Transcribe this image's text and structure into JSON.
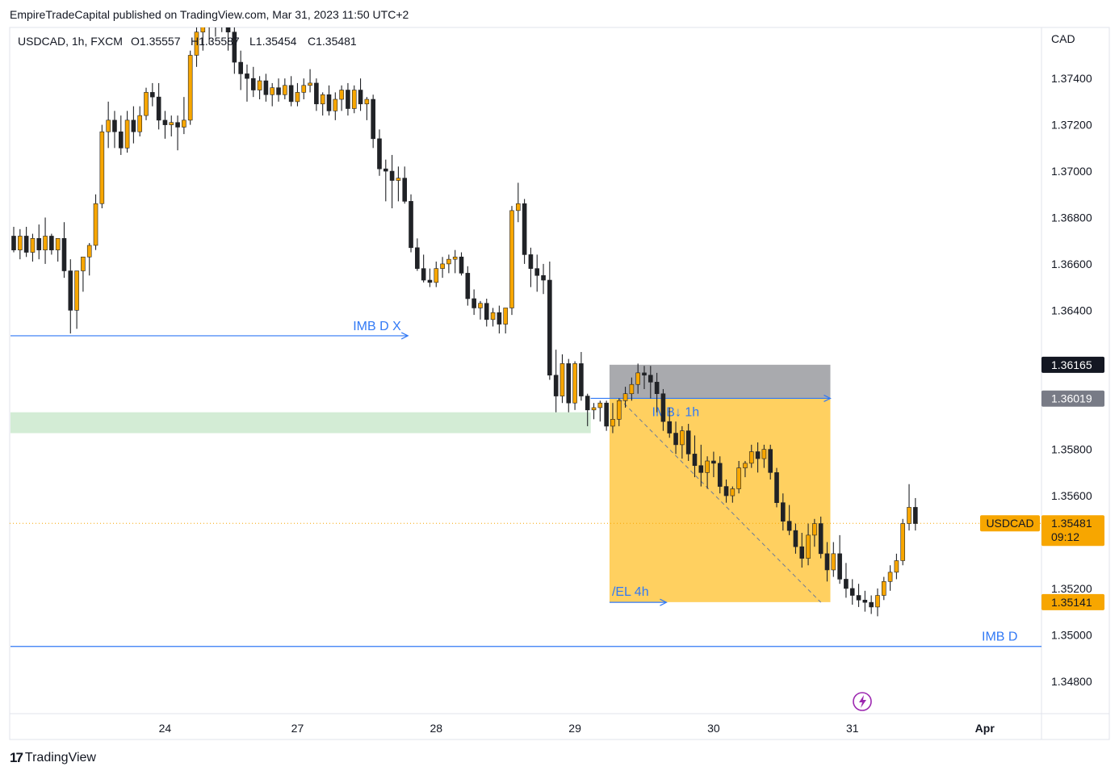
{
  "header": {
    "publisher_line": "EmpireTradeCapital published on TradingView.com, Mar 31, 2023 11:50 UTC+2"
  },
  "legend": {
    "symbol": "USDCAD, 1h, FXCM",
    "open": "O1.35557",
    "high": "H1.35587",
    "low": "L1.35454",
    "close": "C1.35481"
  },
  "footer": {
    "brand": "TradingView"
  },
  "colors": {
    "bull": "#f7a600",
    "bear": "#202226",
    "zone": "#ffd060",
    "zone_top": "#a9aaae",
    "green_zone": "#d3ecd5",
    "line_blue": "#3179f5",
    "price_tag": "#f7a600",
    "dark_tag": "#131722",
    "grey_tag": "#787b86"
  },
  "chart_data": {
    "type": "candlestick",
    "currency_label": "CAD",
    "ylim": [
      1.3466,
      1.3762
    ],
    "y_ticks": [
      "1.37400",
      "1.37200",
      "1.37000",
      "1.36800",
      "1.36600",
      "1.36400",
      "1.35800",
      "1.35600",
      "1.35200",
      "1.35000",
      "1.34800"
    ],
    "y_tick_values": [
      1.374,
      1.372,
      1.37,
      1.368,
      1.366,
      1.364,
      1.358,
      1.356,
      1.352,
      1.35,
      1.348
    ],
    "x_ticks": [
      "24",
      "27",
      "28",
      "29",
      "30",
      "31",
      "Apr"
    ],
    "x_tick_bar_index": [
      24,
      45,
      67,
      89,
      111,
      133,
      154
    ],
    "last_price_label": "USDCAD",
    "last_price": 1.35481,
    "last_price_text": "1.35481",
    "countdown": "09:12",
    "price_tags": [
      {
        "value": 1.36165,
        "text": "1.36165",
        "style": "dark"
      },
      {
        "value": 1.36019,
        "text": "1.36019",
        "style": "grey"
      },
      {
        "value": 1.35141,
        "text": "1.35141",
        "style": "orange"
      }
    ],
    "horizontal_levels": [
      {
        "label": "IMB D X",
        "price": 1.3629,
        "from_bar": 0,
        "to_bar": 62,
        "arrow": true
      },
      {
        "label": "/EL 4h",
        "price": 1.3514,
        "from_bar": 95,
        "to_bar": 103,
        "arrow": true
      },
      {
        "label": "IMB D",
        "price": 1.3495,
        "from_bar": 0,
        "to_bar": 166,
        "arrow": false
      },
      {
        "label": "IMB↓ 1h",
        "price": 1.3602,
        "from_bar": 92,
        "to_bar": 129,
        "arrow": true
      }
    ],
    "zones": [
      {
        "kind": "green",
        "from_bar": 0,
        "to_bar": 91,
        "top": 1.3596,
        "bottom": 1.3587
      },
      {
        "kind": "target",
        "from_bar": 95,
        "to_bar": 129,
        "top": 1.36019,
        "bottom": 1.35141
      },
      {
        "kind": "stop",
        "from_bar": 95,
        "to_bar": 129,
        "top": 1.36165,
        "bottom": 1.36019
      }
    ],
    "diagonal": {
      "from_bar": 96,
      "from_price": 1.3602,
      "to_bar": 128,
      "to_price": 1.3514
    },
    "candles": [
      [
        1.3672,
        1.3676,
        1.3665,
        1.3666
      ],
      [
        1.3666,
        1.3675,
        1.3662,
        1.3672
      ],
      [
        1.3672,
        1.3676,
        1.3663,
        1.3665
      ],
      [
        1.3665,
        1.3673,
        1.3661,
        1.3671
      ],
      [
        1.3671,
        1.3677,
        1.3662,
        1.3666
      ],
      [
        1.3666,
        1.368,
        1.366,
        1.3672
      ],
      [
        1.3672,
        1.3673,
        1.3664,
        1.3666
      ],
      [
        1.3666,
        1.367,
        1.3661,
        1.3671
      ],
      [
        1.3671,
        1.3678,
        1.3654,
        1.3657
      ],
      [
        1.3657,
        1.3662,
        1.363,
        1.364
      ],
      [
        1.364,
        1.3655,
        1.3632,
        1.3657
      ],
      [
        1.3657,
        1.3662,
        1.3648,
        1.3663
      ],
      [
        1.3663,
        1.3669,
        1.3655,
        1.3668
      ],
      [
        1.3668,
        1.369,
        1.3666,
        1.3686
      ],
      [
        1.3686,
        1.372,
        1.3684,
        1.3717
      ],
      [
        1.3717,
        1.373,
        1.371,
        1.3722
      ],
      [
        1.3722,
        1.3726,
        1.371,
        1.3717
      ],
      [
        1.3717,
        1.3724,
        1.3707,
        1.371
      ],
      [
        1.371,
        1.3726,
        1.3708,
        1.3722
      ],
      [
        1.3722,
        1.3728,
        1.3712,
        1.3717
      ],
      [
        1.3717,
        1.3728,
        1.3715,
        1.3724
      ],
      [
        1.3724,
        1.3736,
        1.3722,
        1.3734
      ],
      [
        1.3734,
        1.3738,
        1.3728,
        1.3732
      ],
      [
        1.3732,
        1.3738,
        1.3718,
        1.3722
      ],
      [
        1.3722,
        1.3726,
        1.3714,
        1.372
      ],
      [
        1.372,
        1.3724,
        1.3715,
        1.3721
      ],
      [
        1.3721,
        1.3724,
        1.3709,
        1.3719
      ],
      [
        1.3719,
        1.3732,
        1.3716,
        1.3722
      ],
      [
        1.3722,
        1.3752,
        1.372,
        1.375
      ],
      [
        1.375,
        1.3762,
        1.3745,
        1.376
      ],
      [
        1.376,
        1.377,
        1.3752,
        1.3765
      ],
      [
        1.3765,
        1.377,
        1.3755,
        1.3768
      ],
      [
        1.3768,
        1.3775,
        1.3758,
        1.377
      ],
      [
        1.377,
        1.3773,
        1.376,
        1.3765
      ],
      [
        1.3765,
        1.377,
        1.3752,
        1.376
      ],
      [
        1.376,
        1.3768,
        1.3742,
        1.3747
      ],
      [
        1.3747,
        1.3752,
        1.3735,
        1.3742
      ],
      [
        1.3742,
        1.3746,
        1.373,
        1.374
      ],
      [
        1.374,
        1.3745,
        1.3732,
        1.3735
      ],
      [
        1.3735,
        1.3741,
        1.3731,
        1.3739
      ],
      [
        1.3739,
        1.3742,
        1.373,
        1.3733
      ],
      [
        1.3733,
        1.3738,
        1.3728,
        1.3736
      ],
      [
        1.3736,
        1.374,
        1.373,
        1.3733
      ],
      [
        1.3733,
        1.374,
        1.3731,
        1.3737
      ],
      [
        1.3737,
        1.3741,
        1.3728,
        1.373
      ],
      [
        1.373,
        1.3738,
        1.3728,
        1.3734
      ],
      [
        1.3734,
        1.374,
        1.3731,
        1.3737
      ],
      [
        1.3737,
        1.3744,
        1.3734,
        1.3738
      ],
      [
        1.3738,
        1.374,
        1.3726,
        1.3729
      ],
      [
        1.3729,
        1.3734,
        1.3724,
        1.3733
      ],
      [
        1.3733,
        1.3737,
        1.3724,
        1.3726
      ],
      [
        1.3726,
        1.3734,
        1.3722,
        1.3731
      ],
      [
        1.3731,
        1.3737,
        1.3726,
        1.3735
      ],
      [
        1.3735,
        1.3738,
        1.3724,
        1.3727
      ],
      [
        1.3727,
        1.3737,
        1.3725,
        1.3735
      ],
      [
        1.3735,
        1.374,
        1.3726,
        1.3729
      ],
      [
        1.3729,
        1.3732,
        1.3722,
        1.3731
      ],
      [
        1.3731,
        1.3733,
        1.371,
        1.3714
      ],
      [
        1.3714,
        1.3718,
        1.3698,
        1.3701
      ],
      [
        1.3701,
        1.3705,
        1.3687,
        1.37
      ],
      [
        1.37,
        1.3707,
        1.3684,
        1.3696
      ],
      [
        1.3696,
        1.3702,
        1.3687,
        1.3697
      ],
      [
        1.3697,
        1.3702,
        1.3686,
        1.3687
      ],
      [
        1.3687,
        1.369,
        1.3665,
        1.3667
      ],
      [
        1.3667,
        1.3671,
        1.3657,
        1.3658
      ],
      [
        1.3658,
        1.3664,
        1.3652,
        1.3653
      ],
      [
        1.3653,
        1.3658,
        1.365,
        1.3652
      ],
      [
        1.3652,
        1.3661,
        1.365,
        1.3658
      ],
      [
        1.3658,
        1.3663,
        1.3654,
        1.366
      ],
      [
        1.366,
        1.3664,
        1.3656,
        1.3662
      ],
      [
        1.3662,
        1.3666,
        1.3656,
        1.3663
      ],
      [
        1.3663,
        1.3665,
        1.3655,
        1.3656
      ],
      [
        1.3656,
        1.3659,
        1.3642,
        1.3645
      ],
      [
        1.3645,
        1.3649,
        1.3638,
        1.3641
      ],
      [
        1.3641,
        1.3644,
        1.3636,
        1.3643
      ],
      [
        1.3643,
        1.3645,
        1.3633,
        1.3636
      ],
      [
        1.3636,
        1.3641,
        1.3633,
        1.3639
      ],
      [
        1.3639,
        1.3642,
        1.363,
        1.3634
      ],
      [
        1.3634,
        1.3641,
        1.363,
        1.3641
      ],
      [
        1.3641,
        1.3685,
        1.3638,
        1.3683
      ],
      [
        1.3683,
        1.3695,
        1.3678,
        1.3686
      ],
      [
        1.3686,
        1.3688,
        1.366,
        1.3664
      ],
      [
        1.3664,
        1.3667,
        1.365,
        1.3658
      ],
      [
        1.3658,
        1.3664,
        1.3648,
        1.3655
      ],
      [
        1.3655,
        1.366,
        1.3647,
        1.3653
      ],
      [
        1.3653,
        1.3661,
        1.361,
        1.3612
      ],
      [
        1.3612,
        1.3623,
        1.3596,
        1.3603
      ],
      [
        1.3603,
        1.3621,
        1.36,
        1.3617
      ],
      [
        1.3617,
        1.3619,
        1.3596,
        1.36
      ],
      [
        1.36,
        1.3618,
        1.3597,
        1.3617
      ],
      [
        1.3617,
        1.3622,
        1.3601,
        1.3603
      ],
      [
        1.3603,
        1.3604,
        1.359,
        1.3597
      ],
      [
        1.3597,
        1.36,
        1.3593,
        1.3598
      ],
      [
        1.3598,
        1.3601,
        1.3592,
        1.36
      ],
      [
        1.36,
        1.3601,
        1.3588,
        1.359
      ],
      [
        1.359,
        1.36,
        1.3587,
        1.3593
      ],
      [
        1.3593,
        1.3602,
        1.359,
        1.3601
      ],
      [
        1.3601,
        1.3607,
        1.3598,
        1.3604
      ],
      [
        1.3604,
        1.3611,
        1.3601,
        1.3608
      ],
      [
        1.3608,
        1.3617,
        1.3604,
        1.3613
      ],
      [
        1.3613,
        1.3616,
        1.3606,
        1.3612
      ],
      [
        1.3612,
        1.3616,
        1.3602,
        1.3609
      ],
      [
        1.3609,
        1.3613,
        1.3596,
        1.3604
      ],
      [
        1.3604,
        1.3606,
        1.3588,
        1.3592
      ],
      [
        1.3592,
        1.3598,
        1.3585,
        1.3587
      ],
      [
        1.3587,
        1.3592,
        1.3578,
        1.3582
      ],
      [
        1.3582,
        1.359,
        1.3576,
        1.3588
      ],
      [
        1.3588,
        1.3591,
        1.3575,
        1.3578
      ],
      [
        1.3578,
        1.3586,
        1.3568,
        1.3573
      ],
      [
        1.3573,
        1.3582,
        1.3564,
        1.357
      ],
      [
        1.357,
        1.3577,
        1.3563,
        1.3575
      ],
      [
        1.3575,
        1.3579,
        1.3568,
        1.3574
      ],
      [
        1.3574,
        1.3577,
        1.3561,
        1.3564
      ],
      [
        1.3564,
        1.3567,
        1.3557,
        1.356
      ],
      [
        1.356,
        1.3564,
        1.3557,
        1.3563
      ],
      [
        1.3563,
        1.3575,
        1.3561,
        1.3572
      ],
      [
        1.3572,
        1.3575,
        1.3568,
        1.3574
      ],
      [
        1.3574,
        1.3582,
        1.3572,
        1.3579
      ],
      [
        1.3579,
        1.3583,
        1.357,
        1.3576
      ],
      [
        1.3576,
        1.3582,
        1.3572,
        1.358
      ],
      [
        1.358,
        1.3582,
        1.3567,
        1.357
      ],
      [
        1.357,
        1.3572,
        1.3555,
        1.3557
      ],
      [
        1.3557,
        1.3561,
        1.3545,
        1.3549
      ],
      [
        1.3549,
        1.3556,
        1.3543,
        1.3545
      ],
      [
        1.3545,
        1.3548,
        1.3535,
        1.3538
      ],
      [
        1.3538,
        1.3544,
        1.3529,
        1.3533
      ],
      [
        1.3533,
        1.3548,
        1.353,
        1.3543
      ],
      [
        1.3543,
        1.355,
        1.3538,
        1.3548
      ],
      [
        1.3548,
        1.3551,
        1.3533,
        1.3535
      ],
      [
        1.3535,
        1.354,
        1.3523,
        1.3528
      ],
      [
        1.3528,
        1.354,
        1.3525,
        1.3535
      ],
      [
        1.3535,
        1.3543,
        1.3522,
        1.3524
      ],
      [
        1.3524,
        1.3531,
        1.3516,
        1.352
      ],
      [
        1.352,
        1.3524,
        1.3513,
        1.3517
      ],
      [
        1.3517,
        1.3522,
        1.3512,
        1.3515
      ],
      [
        1.3515,
        1.3519,
        1.351,
        1.3514
      ],
      [
        1.3514,
        1.3517,
        1.3509,
        1.3512
      ],
      [
        1.3512,
        1.352,
        1.3508,
        1.3517
      ],
      [
        1.3517,
        1.3525,
        1.3515,
        1.3523
      ],
      [
        1.3523,
        1.353,
        1.3519,
        1.3527
      ],
      [
        1.3527,
        1.3535,
        1.3524,
        1.3532
      ],
      [
        1.3532,
        1.355,
        1.353,
        1.3548
      ],
      [
        1.3548,
        1.3565,
        1.3545,
        1.3555
      ],
      [
        1.3555,
        1.3559,
        1.3545,
        1.3548
      ]
    ]
  }
}
